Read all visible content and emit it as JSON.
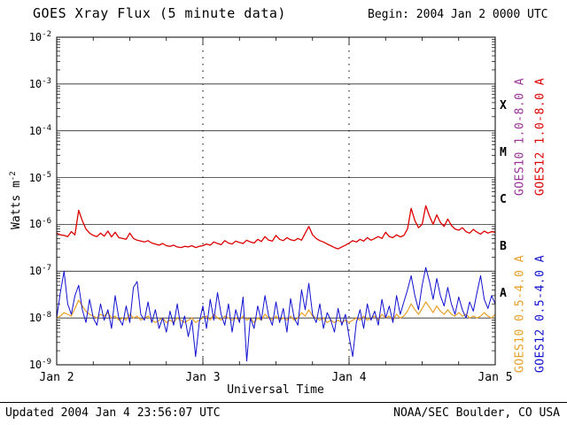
{
  "header": {
    "title": "GOES Xray Flux (5 minute data)",
    "begin_label": "Begin:  2004 Jan 2 0000 UTC"
  },
  "footer": {
    "updated": "Updated 2004 Jan  4 23:56:07 UTC",
    "source": "NOAA/SEC Boulder, CO USA"
  },
  "chart_data": {
    "type": "line",
    "title": "GOES Xray Flux (5 minute data)",
    "xlabel": "Universal Time",
    "ylabel": {
      "base": "Watts m",
      "exp": "-2"
    },
    "x_start_label": "2004 Jan 2 0000 UTC",
    "x_span_days": 3,
    "x_step_days": 0.025,
    "ylim": [
      1e-09,
      0.01
    ],
    "y_scale": "log",
    "grid": {
      "horizontal": "solid-per-decade",
      "vertical": "dashed-per-day"
    },
    "yaxis_ticks": [
      {
        "base": "10",
        "exp": "-2"
      },
      {
        "base": "10",
        "exp": "-3"
      },
      {
        "base": "10",
        "exp": "-4"
      },
      {
        "base": "10",
        "exp": "-5"
      },
      {
        "base": "10",
        "exp": "-6"
      },
      {
        "base": "10",
        "exp": "-7"
      },
      {
        "base": "10",
        "exp": "-8"
      },
      {
        "base": "10",
        "exp": "-9"
      }
    ],
    "xaxis_ticks": [
      "Jan 2",
      "Jan 3",
      "Jan 4",
      "Jan 5"
    ],
    "flux_classes": [
      {
        "label": "X",
        "log_center": -3.5
      },
      {
        "label": "M",
        "log_center": -4.5
      },
      {
        "label": "C",
        "log_center": -5.5
      },
      {
        "label": "B",
        "log_center": -6.5
      },
      {
        "label": "A",
        "log_center": -7.5
      }
    ],
    "legend": [
      {
        "label": "GOES10 1.0-8.0 A",
        "color": "#993399"
      },
      {
        "label": "GOES12 1.0-8.0 A",
        "color": "#dd0000"
      },
      {
        "label": "GOES10 0.5-4.0 A",
        "color": "#e8a028"
      },
      {
        "label": "GOES12 0.5-4.0 A",
        "color": "#1010d0"
      }
    ],
    "series": [
      {
        "name": "GOES10 0.5-4.0 A",
        "color": "#e8a028",
        "scale": 1e-08,
        "values": [
          1.0,
          1.1,
          1.3,
          1.2,
          1.1,
          1.6,
          2.4,
          1.8,
          1.4,
          1.2,
          1.1,
          1.0,
          1.2,
          1.1,
          1.3,
          1.0,
          1.1,
          0.9,
          1.0,
          0.9,
          1.2,
          1.0,
          1.1,
          0.9,
          1.0,
          1.1,
          0.9,
          0.8,
          0.9,
          1.0,
          0.8,
          0.9,
          0.8,
          1.0,
          0.9,
          0.8,
          0.9,
          1.0,
          0.8,
          0.9,
          1.0,
          1.1,
          0.9,
          1.2,
          1.0,
          0.9,
          1.1,
          1.0,
          0.9,
          1.0,
          0.9,
          1.1,
          0.9,
          1.0,
          0.8,
          1.0,
          0.9,
          1.2,
          1.0,
          0.9,
          1.1,
          0.9,
          1.0,
          0.9,
          1.1,
          0.9,
          1.0,
          1.3,
          1.1,
          1.5,
          1.1,
          1.0,
          0.9,
          1.0,
          0.8,
          0.9,
          0.8,
          0.9,
          0.8,
          0.9,
          0.8,
          0.9,
          1.0,
          0.9,
          1.1,
          0.9,
          1.0,
          1.1,
          0.9,
          1.2,
          1.0,
          1.1,
          0.9,
          1.2,
          1.0,
          1.1,
          1.4,
          2.0,
          1.5,
          1.2,
          1.6,
          2.2,
          1.7,
          1.3,
          1.8,
          1.4,
          1.2,
          1.5,
          1.2,
          1.1,
          1.3,
          1.1,
          1.2,
          1.0,
          1.1,
          1.0,
          1.1,
          1.3,
          1.1,
          1.0,
          1.2
        ]
      },
      {
        "name": "GOES12 0.5-4.0 A",
        "color": "#1010d0",
        "scale": 1e-08,
        "values": [
          1.0,
          3.5,
          10,
          2.0,
          1.2,
          3.0,
          5.0,
          1.5,
          0.8,
          2.5,
          1.0,
          0.7,
          2.0,
          0.9,
          1.5,
          0.6,
          3.0,
          1.0,
          0.7,
          1.8,
          0.8,
          4.5,
          6.0,
          1.2,
          0.9,
          2.2,
          0.8,
          1.5,
          0.6,
          1.0,
          0.5,
          1.4,
          0.7,
          2.0,
          0.6,
          1.1,
          0.4,
          0.9,
          0.15,
          0.8,
          1.8,
          0.6,
          2.5,
          0.9,
          3.5,
          1.2,
          0.7,
          2.0,
          0.5,
          1.5,
          0.8,
          2.8,
          0.12,
          1.0,
          0.6,
          1.8,
          0.9,
          3.0,
          1.1,
          0.7,
          2.2,
          0.8,
          1.6,
          0.5,
          2.6,
          1.0,
          0.7,
          4.0,
          1.5,
          5.5,
          1.2,
          0.8,
          2.0,
          0.6,
          1.3,
          0.9,
          0.5,
          1.6,
          0.7,
          1.2,
          0.4,
          0.15,
          0.8,
          1.5,
          0.6,
          2.0,
          0.9,
          1.4,
          0.7,
          2.5,
          1.0,
          1.8,
          0.8,
          3.0,
          1.2,
          2.2,
          4.0,
          8.0,
          3.0,
          1.5,
          5.0,
          12,
          6.0,
          2.5,
          7.0,
          3.0,
          1.8,
          4.5,
          2.0,
          1.2,
          2.8,
          1.5,
          1.0,
          2.2,
          1.4,
          3.5,
          8.0,
          2.5,
          1.6,
          3.0,
          2.0
        ]
      },
      {
        "name": "GOES12 1.0-8.0 A",
        "color": "#dd0000",
        "scale": 1e-07,
        "values": [
          6.5,
          6.0,
          5.8,
          5.5,
          7.0,
          6.0,
          20,
          12,
          8,
          6.5,
          5.8,
          5.5,
          6.5,
          5.6,
          7.2,
          5.4,
          6.8,
          5.2,
          5.0,
          4.8,
          6.5,
          5.0,
          4.6,
          4.4,
          4.2,
          4.5,
          4.0,
          3.8,
          3.6,
          3.9,
          3.5,
          3.4,
          3.6,
          3.3,
          3.2,
          3.4,
          3.3,
          3.5,
          3.2,
          3.4,
          3.5,
          3.8,
          3.6,
          4.2,
          3.9,
          3.7,
          4.5,
          4.0,
          3.8,
          4.4,
          4.1,
          3.9,
          4.6,
          4.2,
          4.0,
          4.8,
          4.3,
          5.5,
          4.6,
          4.4,
          5.8,
          4.8,
          4.5,
          5.2,
          4.7,
          4.5,
          5.0,
          4.6,
          6.5,
          9.0,
          6.0,
          5.0,
          4.5,
          4.2,
          3.8,
          3.5,
          3.2,
          3.0,
          3.3,
          3.6,
          4.0,
          4.5,
          4.2,
          4.8,
          4.4,
          5.2,
          4.6,
          5.0,
          5.5,
          5.0,
          6.8,
          5.5,
          5.2,
          6.0,
          5.4,
          5.8,
          8.0,
          22,
          12,
          8.5,
          10,
          25,
          15,
          10,
          16,
          11,
          9.0,
          13,
          9.5,
          8.0,
          7.5,
          8.5,
          7.0,
          6.5,
          7.8,
          6.8,
          6.2,
          7.2,
          6.5,
          7.0,
          6.8
        ]
      }
    ]
  }
}
